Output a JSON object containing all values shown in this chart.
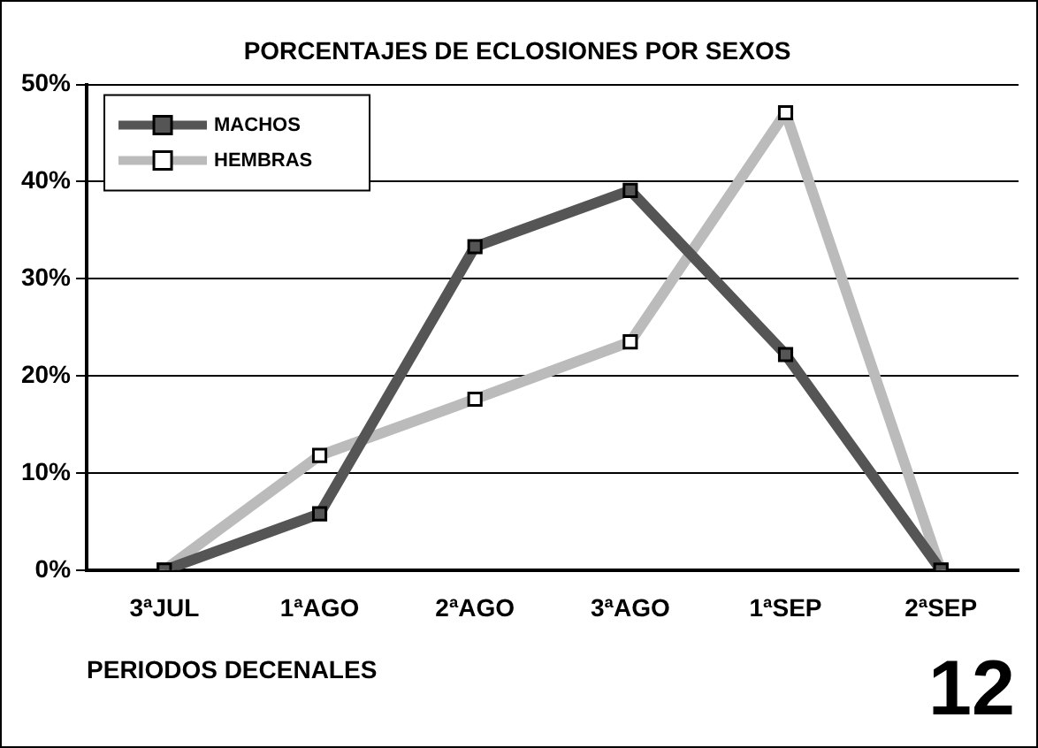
{
  "chart_data": {
    "type": "line",
    "title": "PORCENTAJES DE ECLOSIONES POR SEXOS",
    "xlabel": "PERIODOS DECENALES",
    "categories": [
      "3ªJUL",
      "1ªAGO",
      "2ªAGO",
      "3ªAGO",
      "1ªSEP",
      "2ªSEP"
    ],
    "series": [
      {
        "name": "MACHOS",
        "color": "#555555",
        "values": [
          0,
          5.8,
          33.3,
          39.1,
          22.2,
          0
        ]
      },
      {
        "name": "HEMBRAS",
        "color": "#bbbbbb",
        "values": [
          0,
          11.8,
          17.6,
          23.5,
          47.1,
          0
        ]
      }
    ],
    "ylim": [
      0,
      50
    ],
    "yticks": [
      {
        "value": 0,
        "label": "0%"
      },
      {
        "value": 10,
        "label": "10%"
      },
      {
        "value": 20,
        "label": "20%"
      },
      {
        "value": 30,
        "label": "30%"
      },
      {
        "value": 40,
        "label": "40%"
      },
      {
        "value": 50,
        "label": "50%"
      }
    ],
    "grid": "y",
    "legend": "top left",
    "marker": "square",
    "line_style": "solid",
    "annotations": [
      "12"
    ]
  }
}
